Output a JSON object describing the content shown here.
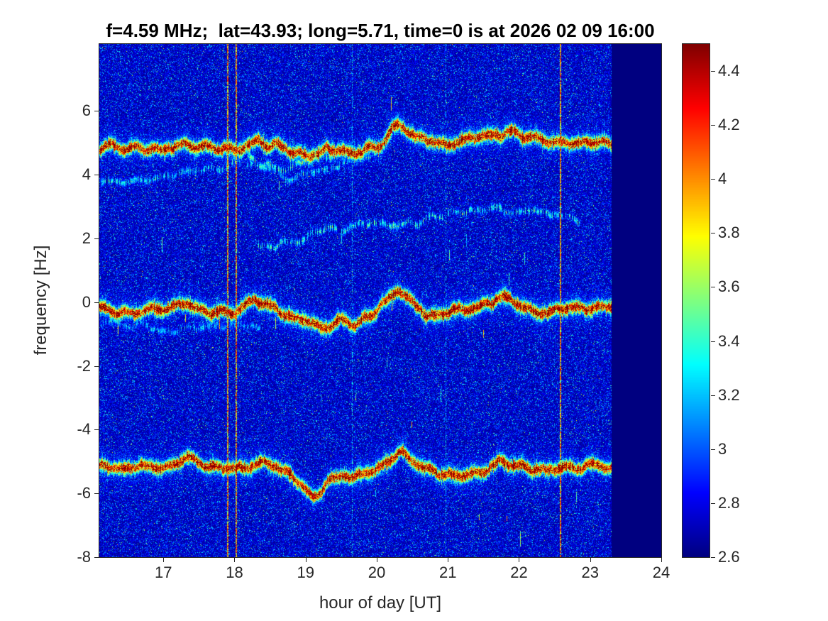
{
  "title": "f=4.59 MHz;  lat=43.93; long=5.71, time=0 is at 2026 02 09 16:00",
  "chart_data": {
    "type": "heatmap",
    "title": "f=4.59 MHz;  lat=43.93; long=5.71, time=0 is at 2026 02 09 16:00",
    "xlabel": "hour of day [UT]",
    "ylabel": "frequency [Hz]",
    "xlim": [
      16.1,
      24
    ],
    "ylim": [
      -8,
      8.1
    ],
    "x_ticks": [
      17,
      18,
      19,
      20,
      21,
      22,
      23,
      24
    ],
    "y_ticks": [
      -8,
      -6,
      -4,
      -2,
      0,
      2,
      4,
      6
    ],
    "colormap": "jet",
    "colorbar": {
      "min": 2.6,
      "max": 4.5,
      "ticks": [
        2.6,
        2.8,
        3,
        3.2,
        3.4,
        3.6,
        3.8,
        4,
        4.2,
        4.4
      ]
    },
    "background_level_range": [
      2.6,
      3.0
    ],
    "no_data_after_hour": 23.3,
    "traces": [
      {
        "name": "doppler-trace-upper",
        "intensity": 4.45,
        "path": [
          [
            16.1,
            4.8
          ],
          [
            16.5,
            4.85
          ],
          [
            17.0,
            4.9
          ],
          [
            17.3,
            5.1
          ],
          [
            17.6,
            4.95
          ],
          [
            18.0,
            4.9
          ],
          [
            18.35,
            5.15
          ],
          [
            18.8,
            4.75
          ],
          [
            19.05,
            4.6
          ],
          [
            19.3,
            4.85
          ],
          [
            19.7,
            4.8
          ],
          [
            20.0,
            4.95
          ],
          [
            20.3,
            5.55
          ],
          [
            20.55,
            5.1
          ],
          [
            20.8,
            4.95
          ],
          [
            21.0,
            4.9
          ],
          [
            21.3,
            5.0
          ],
          [
            21.6,
            5.1
          ],
          [
            21.9,
            5.2
          ],
          [
            22.2,
            5.0
          ],
          [
            22.5,
            4.9
          ],
          [
            22.8,
            4.85
          ],
          [
            23.3,
            4.9
          ]
        ]
      },
      {
        "name": "doppler-trace-center",
        "intensity": 4.5,
        "path": [
          [
            16.1,
            -0.15
          ],
          [
            16.5,
            -0.3
          ],
          [
            17.0,
            -0.2
          ],
          [
            17.3,
            0.1
          ],
          [
            17.5,
            -0.1
          ],
          [
            17.8,
            -0.25
          ],
          [
            18.0,
            -0.2
          ],
          [
            18.3,
            0.1
          ],
          [
            18.5,
            -0.1
          ],
          [
            18.8,
            -0.4
          ],
          [
            19.0,
            -0.55
          ],
          [
            19.2,
            -0.8
          ],
          [
            19.5,
            -0.4
          ],
          [
            19.7,
            -0.6
          ],
          [
            20.0,
            -0.15
          ],
          [
            20.3,
            0.55
          ],
          [
            20.5,
            0.1
          ],
          [
            20.7,
            -0.3
          ],
          [
            21.0,
            -0.35
          ],
          [
            21.3,
            -0.2
          ],
          [
            21.6,
            0.0
          ],
          [
            21.8,
            0.15
          ],
          [
            22.0,
            -0.1
          ],
          [
            22.3,
            -0.4
          ],
          [
            22.6,
            -0.35
          ],
          [
            22.9,
            -0.3
          ],
          [
            23.3,
            -0.25
          ]
        ]
      },
      {
        "name": "doppler-trace-lower",
        "intensity": 4.45,
        "path": [
          [
            16.1,
            -5.15
          ],
          [
            16.5,
            -5.3
          ],
          [
            17.0,
            -5.2
          ],
          [
            17.3,
            -4.95
          ],
          [
            17.6,
            -5.3
          ],
          [
            18.0,
            -5.35
          ],
          [
            18.3,
            -5.1
          ],
          [
            18.6,
            -5.3
          ],
          [
            18.9,
            -5.7
          ],
          [
            19.1,
            -6.2
          ],
          [
            19.4,
            -5.6
          ],
          [
            19.7,
            -5.5
          ],
          [
            20.0,
            -5.3
          ],
          [
            20.3,
            -4.75
          ],
          [
            20.6,
            -5.1
          ],
          [
            20.9,
            -5.3
          ],
          [
            21.2,
            -5.3
          ],
          [
            21.5,
            -5.2
          ],
          [
            21.8,
            -4.95
          ],
          [
            22.1,
            -5.2
          ],
          [
            22.4,
            -5.3
          ],
          [
            22.7,
            -5.35
          ],
          [
            23.0,
            -5.25
          ],
          [
            23.3,
            -5.3
          ]
        ]
      },
      {
        "name": "faint-trace-4hz",
        "intensity": 3.35,
        "path": [
          [
            16.1,
            3.85
          ],
          [
            16.8,
            4.0
          ],
          [
            17.5,
            4.25
          ],
          [
            18.1,
            4.35
          ],
          [
            18.45,
            4.15
          ],
          [
            18.75,
            4.0
          ],
          [
            19.1,
            4.2
          ],
          [
            19.6,
            4.4
          ],
          [
            19.9,
            4.5
          ]
        ]
      },
      {
        "name": "faint-strand-below-upper",
        "intensity": 3.5,
        "path": [
          [
            18.2,
            4.55
          ],
          [
            18.7,
            4.3
          ],
          [
            19.2,
            4.5
          ],
          [
            19.7,
            4.6
          ]
        ]
      },
      {
        "name": "faint-trace-2hz",
        "intensity": 3.4,
        "path": [
          [
            18.35,
            1.75
          ],
          [
            19.3,
            2.3
          ],
          [
            19.8,
            2.55
          ],
          [
            20.6,
            2.55
          ],
          [
            21.3,
            2.9
          ],
          [
            22.2,
            2.95
          ],
          [
            22.85,
            2.6
          ]
        ]
      },
      {
        "name": "faint-strand-below-center",
        "intensity": 3.25,
        "path": [
          [
            16.1,
            -0.65
          ],
          [
            17.0,
            -0.8
          ],
          [
            17.8,
            -0.6
          ],
          [
            18.35,
            -0.8
          ]
        ]
      }
    ],
    "vertical_lines": [
      {
        "hour": 17.9,
        "strong": true
      },
      {
        "hour": 18.02,
        "strong": true
      },
      {
        "hour": 22.57,
        "strong": true
      },
      {
        "hour": 19.65,
        "strong": false
      },
      {
        "hour": 20.97,
        "strong": false
      }
    ]
  }
}
